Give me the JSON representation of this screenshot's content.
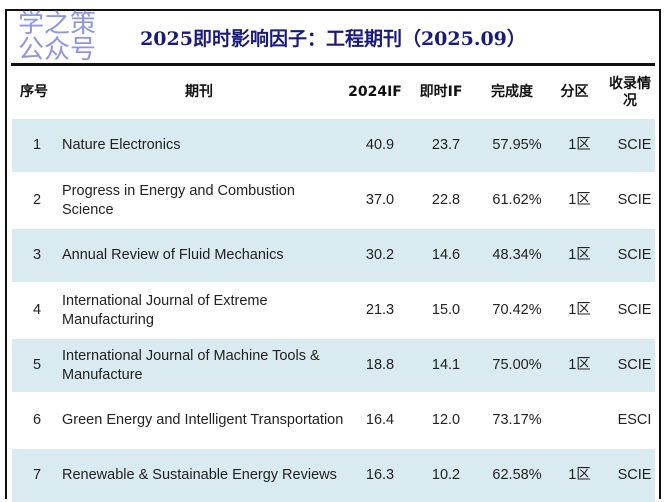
{
  "title": "2025即时影响因子：工程期刊（2025.09）",
  "headers": [
    "序号",
    "期刊",
    "2024IF",
    "即时IF",
    "完成度",
    "分区",
    "收录情况"
  ],
  "rows": [
    {
      "no": "1",
      "journal": "Nature Electronics",
      "if2024": "40.9",
      "instant_if": "23.7",
      "completion": "57.95%",
      "zone": "1区",
      "index": "SCIE"
    },
    {
      "no": "2",
      "journal": "Progress in Energy and Combustion Science",
      "if2024": "37.0",
      "instant_if": "22.8",
      "completion": "61.62%",
      "zone": "1区",
      "index": "SCIE"
    },
    {
      "no": "3",
      "journal": "Annual Review of Fluid Mechanics",
      "if2024": "30.2",
      "instant_if": "14.6",
      "completion": "48.34%",
      "zone": "1区",
      "index": "SCIE"
    },
    {
      "no": "4",
      "journal": "International Journal of Extreme Manufacturing",
      "if2024": "21.3",
      "instant_if": "15.0",
      "completion": "70.42%",
      "zone": "1区",
      "index": "SCIE"
    },
    {
      "no": "5",
      "journal": "International Journal of Machine Tools & Manufacture",
      "if2024": "18.8",
      "instant_if": "14.1",
      "completion": "75.00%",
      "zone": "1区",
      "index": "SCIE"
    },
    {
      "no": "6",
      "journal": "Green Energy and Intelligent Transportation",
      "if2024": "16.4",
      "instant_if": "12.0",
      "completion": "73.17%",
      "zone": "",
      "index": "ESCI"
    },
    {
      "no": "7",
      "journal": "Renewable & Sustainable Energy Reviews",
      "if2024": "16.3",
      "instant_if": "10.2",
      "completion": "62.58%",
      "zone": "1区",
      "index": "SCIE"
    }
  ],
  "watermark": "学之策公众号",
  "colors": {
    "title": "#1a1a7a",
    "row_stripe": "#d9eaf1"
  }
}
